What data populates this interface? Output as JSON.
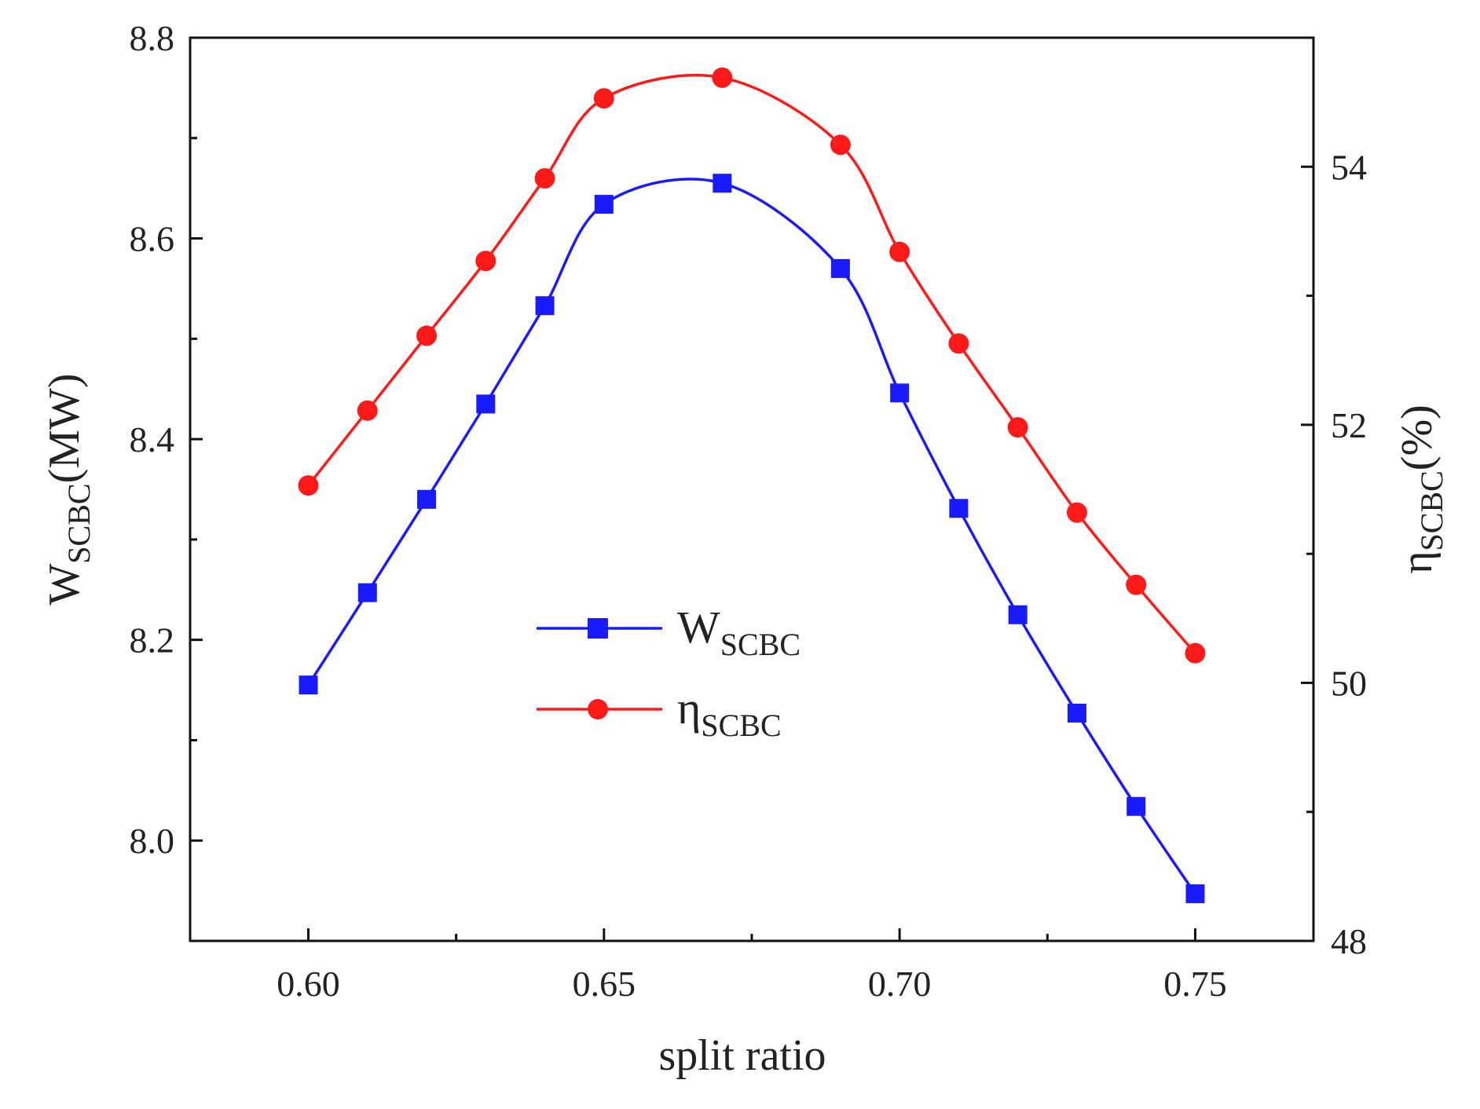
{
  "chart_data": {
    "type": "line",
    "title": "",
    "xlabel": "split ratio",
    "ylabel_left": {
      "main": "W",
      "sub": "SCBC",
      "unit": "(MW)"
    },
    "ylabel_right": {
      "main": "η",
      "sub": "SCBC",
      "unit": "(%)"
    },
    "xlim": [
      0.58,
      0.77
    ],
    "ylim_left": [
      7.9,
      8.8
    ],
    "ylim_right": [
      48,
      55
    ],
    "x_ticks": [
      "0.60",
      "0.65",
      "0.70",
      "0.75"
    ],
    "y_left_ticks": [
      "8.0",
      "8.2",
      "8.4",
      "8.6",
      "8.8"
    ],
    "y_right_ticks": [
      "48",
      "50",
      "52",
      "54"
    ],
    "grid": false,
    "legend_position": "center",
    "series": [
      {
        "name": "W",
        "sub": "SCBC",
        "axis": "left",
        "color": "#1a1aff",
        "marker": "square",
        "x": [
          0.6,
          0.61,
          0.62,
          0.63,
          0.64,
          0.65,
          0.67,
          0.69,
          0.7,
          0.71,
          0.72,
          0.73,
          0.74,
          0.75
        ],
        "y": [
          8.155,
          8.247,
          8.34,
          8.435,
          8.533,
          8.634,
          8.655,
          8.57,
          8.446,
          8.331,
          8.225,
          8.127,
          8.034,
          7.947
        ]
      },
      {
        "name": "η",
        "sub": "SCBC",
        "axis": "right",
        "color": "#ff1a1a",
        "marker": "circle",
        "x": [
          0.6,
          0.61,
          0.62,
          0.63,
          0.64,
          0.65,
          0.67,
          0.69,
          0.7,
          0.71,
          0.72,
          0.73,
          0.74,
          0.75
        ],
        "y": [
          51.53,
          52.11,
          52.69,
          53.27,
          53.91,
          54.53,
          54.69,
          54.17,
          53.34,
          52.63,
          51.98,
          51.32,
          50.76,
          50.23
        ]
      }
    ]
  }
}
